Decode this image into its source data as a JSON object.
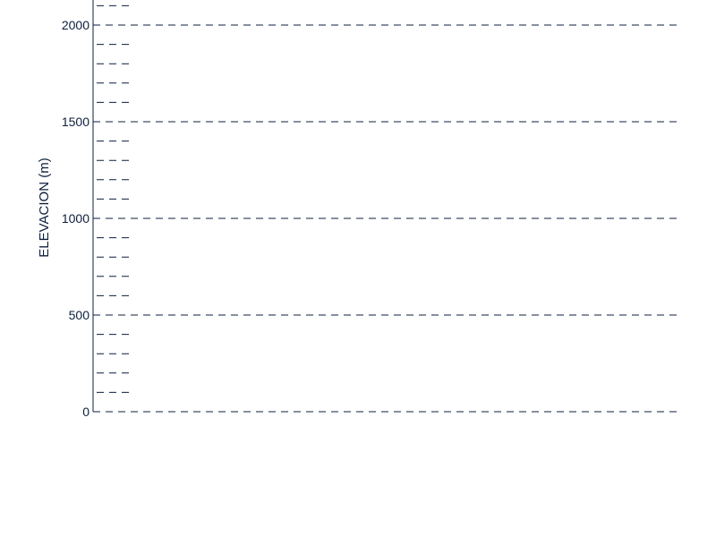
{
  "chart_data": {
    "type": "line",
    "title": "",
    "xlabel": "",
    "ylabel": "ELEVACION  (m)",
    "ylim": [
      0,
      2100
    ],
    "y_major_ticks": [
      0,
      500,
      1000,
      1500,
      2000
    ],
    "y_minor_step": 100,
    "grid": true,
    "series": []
  },
  "colors": {
    "ink": "#0d1f3c"
  }
}
